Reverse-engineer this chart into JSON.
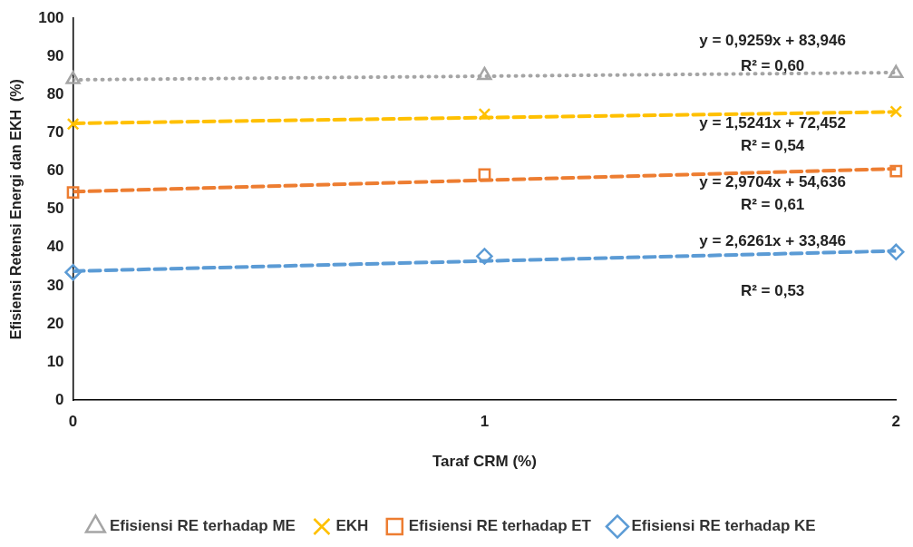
{
  "chart_data": {
    "type": "scatter",
    "xlabel": "Taraf CRM (%)",
    "ylabel": "Efisiensi Retensi Energi dan EKH  (%)",
    "xlim": [
      0,
      2
    ],
    "xticks": [
      0,
      1,
      2
    ],
    "ylim": [
      0,
      100
    ],
    "yticks": [
      0,
      10,
      20,
      30,
      40,
      50,
      60,
      70,
      80,
      90,
      100
    ],
    "grid": false,
    "legend": "bottom",
    "series": [
      {
        "name": "Efisiensi RE terhadap ME",
        "color": "#a5a5a5",
        "marker": "triangle",
        "x": [
          0,
          1,
          2
        ],
        "values": [
          84,
          85.1,
          85.6
        ]
      },
      {
        "name": "EKH",
        "color": "#ffc000",
        "marker": "cross",
        "x": [
          0,
          1,
          2
        ],
        "values": [
          72.3,
          74.9,
          75.6
        ]
      },
      {
        "name": "Efisiensi RE terhadap ET",
        "color": "#ed7d31",
        "marker": "square",
        "x": [
          0,
          1,
          2
        ],
        "values": [
          54.4,
          59.1,
          60
        ]
      },
      {
        "name": "Efisiensi RE terhadap KE",
        "color": "#5b9bd5",
        "marker": "diamond",
        "x": [
          0,
          1,
          2
        ],
        "values": [
          33.5,
          37.7,
          38.8
        ]
      },
      {
        "type": "line",
        "color": "#a5a5a5",
        "line_style": "dotted",
        "x": [
          0,
          2
        ],
        "values": [
          83.9,
          85.8
        ]
      },
      {
        "type": "line",
        "color": "#ffc000",
        "line_style": "dashed",
        "x": [
          0,
          2
        ],
        "values": [
          72.5,
          75.5
        ]
      },
      {
        "type": "line",
        "color": "#ed7d31",
        "line_style": "dashed",
        "x": [
          0,
          2
        ],
        "values": [
          54.6,
          60.6
        ]
      },
      {
        "type": "line",
        "color": "#5b9bd5",
        "line_style": "dashed",
        "x": [
          0,
          2
        ],
        "values": [
          33.8,
          39.1
        ]
      }
    ],
    "annotations": [
      "y = 0,9259x + 83,946",
      "R² = 0,60",
      "y = 1,5241x + 72,452",
      "R² = 0,54",
      "y = 2,9704x + 54,636",
      "R² = 0,61",
      "y = 2,6261x + 33,846",
      "R² = 0,53"
    ]
  }
}
